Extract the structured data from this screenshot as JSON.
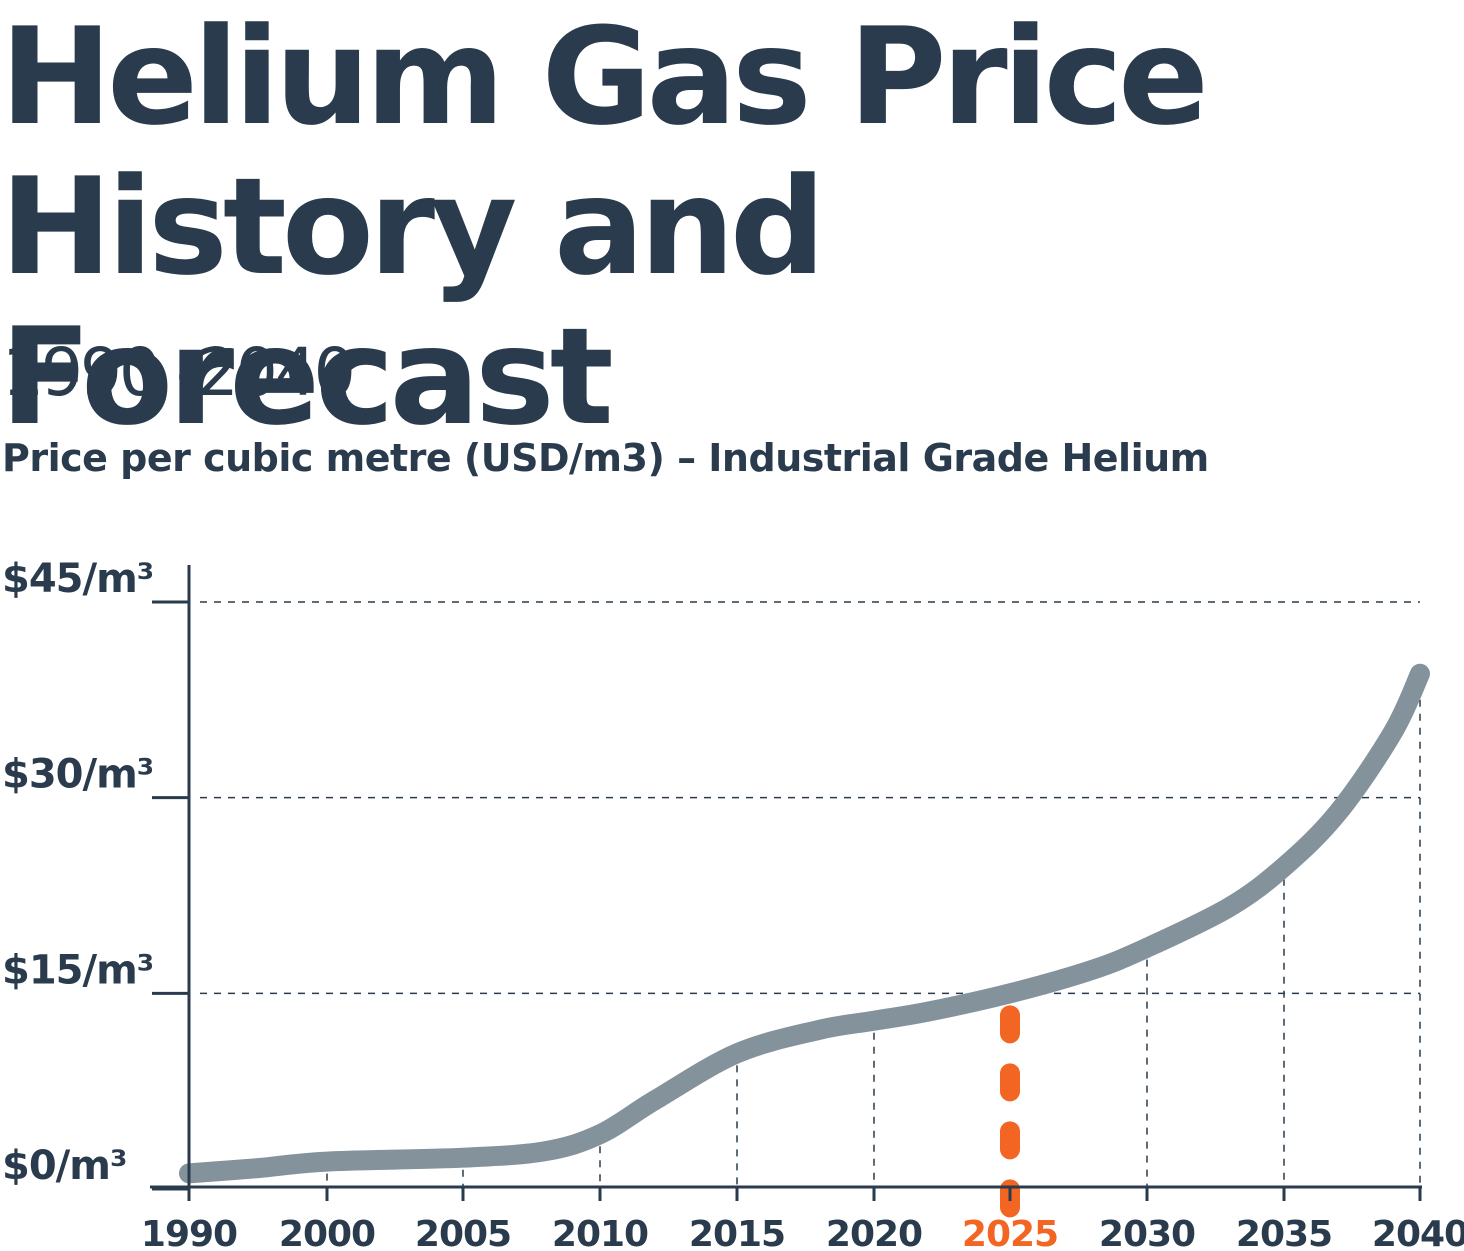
{
  "header": {
    "title_line1": "Helium Gas Price",
    "title_line2": "History and Forecast",
    "subtitle": "1990 -2040",
    "unit_label": "Price per cubic metre (USD/m3) – Industrial Grade Helium"
  },
  "chart_data": {
    "type": "line",
    "title": "Helium Gas Price History and Forecast",
    "subtitle": "1990 -2040",
    "ylabel": "Price per cubic metre (USD/m3) – Industrial Grade Helium",
    "xlabel": "",
    "x_ticks": [
      1990,
      2000,
      2005,
      2010,
      2015,
      2020,
      2025,
      2030,
      2035,
      2040
    ],
    "x_tick_labels": [
      "1990",
      "2000",
      "2005",
      "2010",
      "2015",
      "2020",
      "2025",
      "2030",
      "2035",
      "2040"
    ],
    "highlight_tick": "2025",
    "y_ticks": [
      0,
      15,
      30,
      45
    ],
    "y_tick_labels": [
      "$0/m³",
      "$15/m³",
      "$30/m³",
      "$45/m³"
    ],
    "ylim": [
      0,
      45
    ],
    "grid": "dashed",
    "series": [
      {
        "x": [
          1990,
          1995,
          2000,
          2005,
          2008,
          2010,
          2012,
          2015,
          2018,
          2020,
          2022,
          2025,
          2028,
          2030,
          2033,
          2035,
          2037,
          2039,
          2040
        ],
        "values": [
          1.2,
          1.6,
          2.1,
          2.4,
          2.9,
          4.2,
          6.8,
          10.4,
          12.2,
          12.9,
          13.6,
          15.0,
          16.8,
          18.5,
          21.6,
          24.7,
          28.9,
          35.0,
          39.5
        ]
      }
    ],
    "current_year_marker": 2025,
    "colors": {
      "line": "#84939b",
      "axis": "#293b4c",
      "grid": "#293b4c",
      "highlight": "#f26522"
    }
  }
}
